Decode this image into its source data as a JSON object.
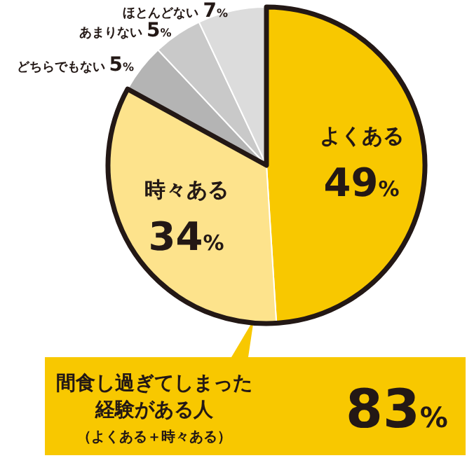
{
  "chart_data": {
    "type": "pie",
    "categories": [
      "よくある",
      "時々ある",
      "どちらでもない",
      "あまりない",
      "ほとんどない"
    ],
    "values": [
      49,
      34,
      5,
      5,
      7
    ],
    "value_labels": [
      "49%",
      "34%",
      "5%",
      "5%",
      "7%"
    ],
    "colors": [
      "#f8c800",
      "#fde38c",
      "#b4b4b4",
      "#c9c9c9",
      "#dcdcdc"
    ],
    "annotations": [
      "間食し過ぎてしまった経験がある人",
      "（よくある＋時々ある）",
      "83%"
    ]
  }
}
